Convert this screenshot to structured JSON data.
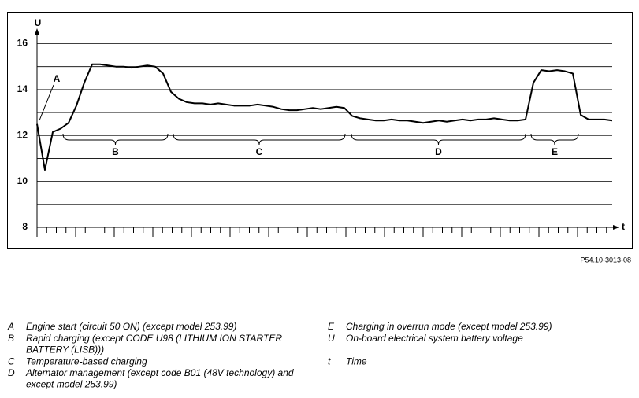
{
  "chart_data": {
    "type": "line",
    "y_label": "U",
    "x_label": "t",
    "categories": [
      null,
      null,
      null,
      null,
      null,
      null,
      null,
      null,
      null,
      null,
      null,
      null,
      null,
      null,
      null,
      null,
      null,
      null,
      null,
      null,
      null,
      null,
      null,
      null,
      null,
      null,
      null,
      null,
      null,
      null,
      null,
      null,
      null,
      null,
      null,
      null,
      null,
      null,
      null,
      null,
      null,
      null,
      null,
      null,
      null,
      null,
      null,
      null,
      null,
      null,
      null,
      null,
      null,
      null,
      null,
      null,
      null,
      null,
      null,
      null,
      null,
      null,
      null,
      null,
      null,
      null,
      null,
      null,
      null,
      null,
      null,
      null,
      null,
      null
    ],
    "series": [
      {
        "color": "#000000",
        "values": [
          12.5,
          10.5,
          12.15,
          12.3,
          12.55,
          13.3,
          14.3,
          15.1,
          15.1,
          15.05,
          15.0,
          15.0,
          14.95,
          15.0,
          15.05,
          15.0,
          14.7,
          13.9,
          13.6,
          13.45,
          13.4,
          13.4,
          13.35,
          13.4,
          13.35,
          13.3,
          13.3,
          13.3,
          13.35,
          13.3,
          13.25,
          13.15,
          13.1,
          13.1,
          13.15,
          13.2,
          13.15,
          13.2,
          13.25,
          13.2,
          12.85,
          12.75,
          12.7,
          12.65,
          12.65,
          12.7,
          12.65,
          12.65,
          12.6,
          12.55,
          12.6,
          12.65,
          12.6,
          12.65,
          12.7,
          12.65,
          12.7,
          12.7,
          12.75,
          12.7,
          12.65,
          12.65,
          12.7,
          14.3,
          14.85,
          14.8,
          14.85,
          14.8,
          14.7,
          12.9,
          12.7,
          12.7,
          12.7,
          12.65
        ]
      }
    ],
    "ylim": [
      8,
      16.6
    ],
    "yticks": [
      8,
      10,
      12,
      14,
      16
    ],
    "minor_grid": [
      9,
      11,
      13,
      15
    ],
    "grid": true,
    "annotations": [
      "A",
      "B",
      "C",
      "D",
      "E"
    ]
  },
  "reference": "P54.10-3013-08",
  "legend": {
    "left": [
      {
        "key": "A",
        "lines": [
          "Engine start (circuit 50 ON) (except model 253.99)"
        ]
      },
      {
        "key": "B",
        "lines": [
          "Rapid charging (except CODE U98 (LITHIUM ION STARTER",
          "BATTERY (LISB)))"
        ]
      },
      {
        "key": "C",
        "lines": [
          "Temperature-based charging"
        ]
      },
      {
        "key": "D",
        "lines": [
          "Alternator management (except code B01 (48V technology) and",
          "except model 253.99)"
        ]
      }
    ],
    "right": [
      {
        "key": "E",
        "lines": [
          "Charging in overrun mode (except model 253.99)"
        ]
      },
      {
        "key": "U",
        "lines": [
          "On-board electrical system battery voltage"
        ]
      },
      {
        "key": "t",
        "lines": [
          "Time"
        ]
      }
    ]
  }
}
